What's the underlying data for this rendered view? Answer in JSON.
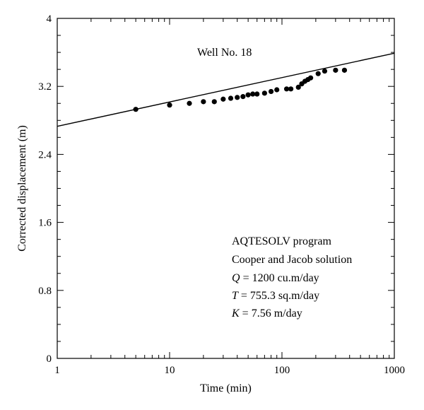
{
  "chart_data": {
    "type": "scatter",
    "title": "",
    "xlabel": "Time (min)",
    "ylabel": "Corrected displacement (m)",
    "x_scale": "log",
    "xlim": [
      1,
      1000
    ],
    "ylim": [
      0,
      4
    ],
    "x_ticks": [
      1,
      10,
      100,
      1000
    ],
    "x_tick_labels": [
      "1",
      "10",
      "100",
      "1000"
    ],
    "y_ticks": [
      0,
      0.8,
      1.6,
      2.4,
      3.2,
      4
    ],
    "y_tick_labels": [
      "0",
      "0.8",
      "1.6",
      "2.4",
      "3.2",
      "4"
    ],
    "grid": false,
    "series": [
      {
        "kind": "points",
        "x": [
          5,
          10,
          15,
          20,
          25,
          30,
          35,
          40,
          45,
          50,
          55,
          60,
          70,
          80,
          90,
          110,
          120,
          140,
          150,
          160,
          170,
          180,
          210,
          240,
          300,
          360
        ],
        "y": [
          2.93,
          2.98,
          3.0,
          3.02,
          3.02,
          3.05,
          3.06,
          3.07,
          3.08,
          3.1,
          3.11,
          3.11,
          3.12,
          3.14,
          3.16,
          3.17,
          3.17,
          3.19,
          3.23,
          3.26,
          3.28,
          3.3,
          3.35,
          3.38,
          3.39,
          3.39
        ]
      },
      {
        "kind": "fit-line",
        "x": [
          1,
          1000
        ],
        "y": [
          2.73,
          3.59
        ]
      }
    ],
    "annotations": {
      "well": "Well No. 18",
      "program": "AQTESOLV program",
      "solution": "Cooper and Jacob solution",
      "q_symbol": "Q",
      "q_value": " = 1200 cu.m/day",
      "t_symbol": "T",
      "t_value": " = 755.3 sq.m/day",
      "k_symbol": "K",
      "k_value": " = 7.56 m/day"
    }
  }
}
